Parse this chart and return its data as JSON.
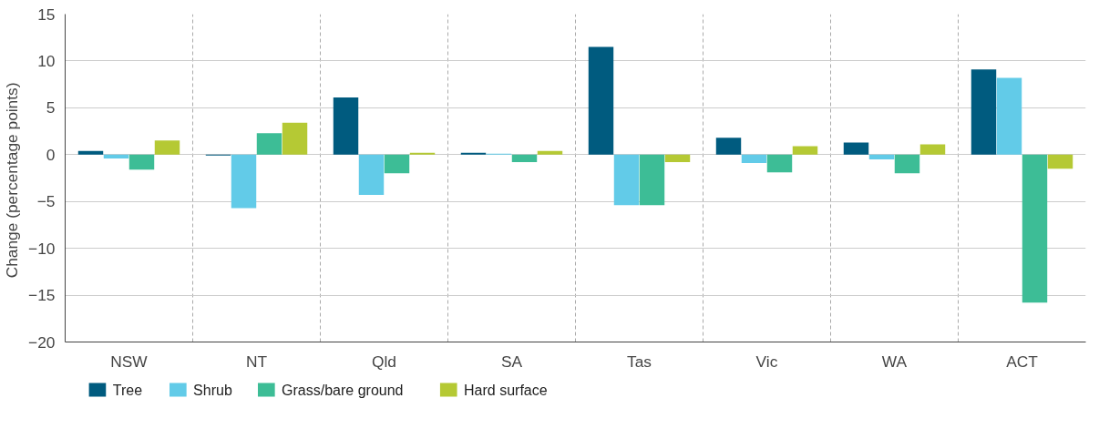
{
  "chart_data": {
    "type": "bar",
    "ylabel": "Change  (percentage points)",
    "categories": [
      "NSW",
      "NT",
      "Qld",
      "SA",
      "Tas",
      "Vic",
      "WA",
      "ACT"
    ],
    "series": [
      {
        "name": "Tree",
        "color": "#005b7f",
        "values": [
          0.4,
          -0.1,
          6.1,
          0.2,
          11.5,
          1.8,
          1.3,
          9.1
        ]
      },
      {
        "name": "Shrub",
        "color": "#62cbe8",
        "values": [
          -0.4,
          -5.7,
          -4.3,
          0.1,
          -5.4,
          -0.9,
          -0.5,
          8.2
        ]
      },
      {
        "name": "Grass/bare ground",
        "color": "#3dbd96",
        "values": [
          -1.6,
          2.3,
          -2.0,
          -0.8,
          -5.4,
          -1.9,
          -2.0,
          -15.8
        ]
      },
      {
        "name": "Hard surface",
        "color": "#b5c934",
        "values": [
          1.5,
          3.4,
          0.2,
          0.4,
          -0.8,
          0.9,
          1.1,
          -1.5
        ]
      }
    ],
    "ylim": [
      -20,
      15
    ],
    "yticks": [
      -20,
      -15,
      -10,
      -5,
      0,
      5,
      10,
      15
    ],
    "grid": true,
    "legend": "bottom left"
  }
}
